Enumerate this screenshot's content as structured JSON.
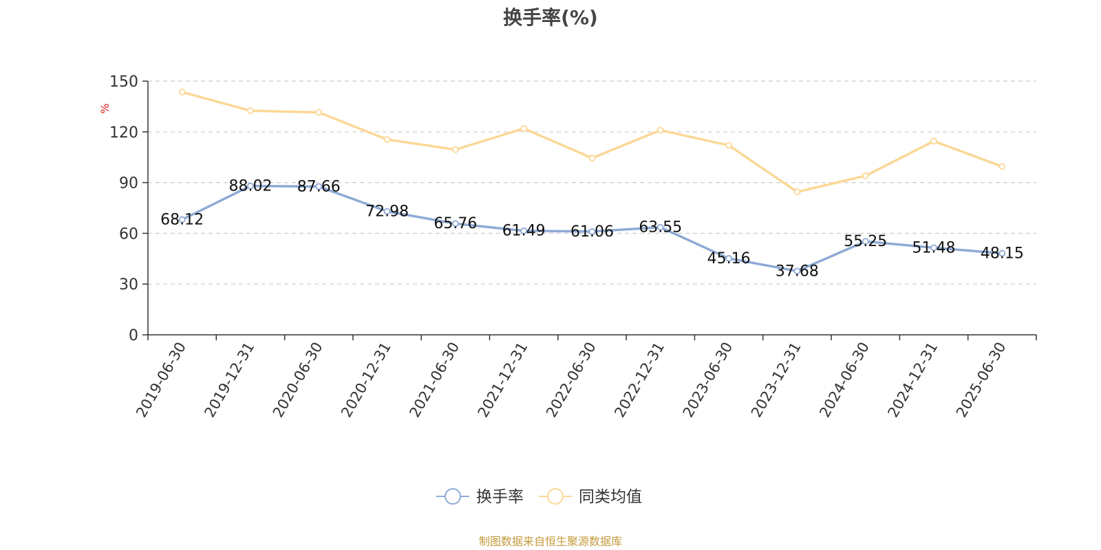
{
  "chart_data": {
    "type": "line",
    "title": "换手率(%)",
    "ylabel": "%",
    "ylim": [
      0,
      150
    ],
    "yticks": [
      "0",
      "30",
      "60",
      "90",
      "120",
      "150"
    ],
    "categories": [
      "2019-06-30",
      "2019-12-31",
      "2020-06-30",
      "2020-12-31",
      "2021-06-30",
      "2021-12-31",
      "2022-06-30",
      "2022-12-31",
      "2023-06-30",
      "2023-12-31",
      "2024-06-30",
      "2024-12-31",
      "2025-06-30"
    ],
    "series": [
      {
        "name": "换手率",
        "color": "#8eaad6",
        "values": [
          68.12,
          88.02,
          87.66,
          72.98,
          65.76,
          61.49,
          61.06,
          63.55,
          45.16,
          37.68,
          55.25,
          51.48,
          48.15
        ],
        "labels": [
          "68.12",
          "88.02",
          "87.66",
          "72.98",
          "65.76",
          "61.49",
          "61.06",
          "63.55",
          "45.16",
          "37.68",
          "55.25",
          "51.48",
          "48.15"
        ]
      },
      {
        "name": "同类均值",
        "color": "#fbd896",
        "values": [
          143.5,
          132.5,
          131.5,
          115.5,
          109.5,
          122,
          104.5,
          121,
          112,
          84.5,
          94,
          114.5,
          99.5
        ]
      }
    ],
    "grid": true,
    "legend_position": "bottom"
  },
  "footer": {
    "text": "制图数据来自恒生聚源数据库",
    "color": "#c49a3c"
  }
}
